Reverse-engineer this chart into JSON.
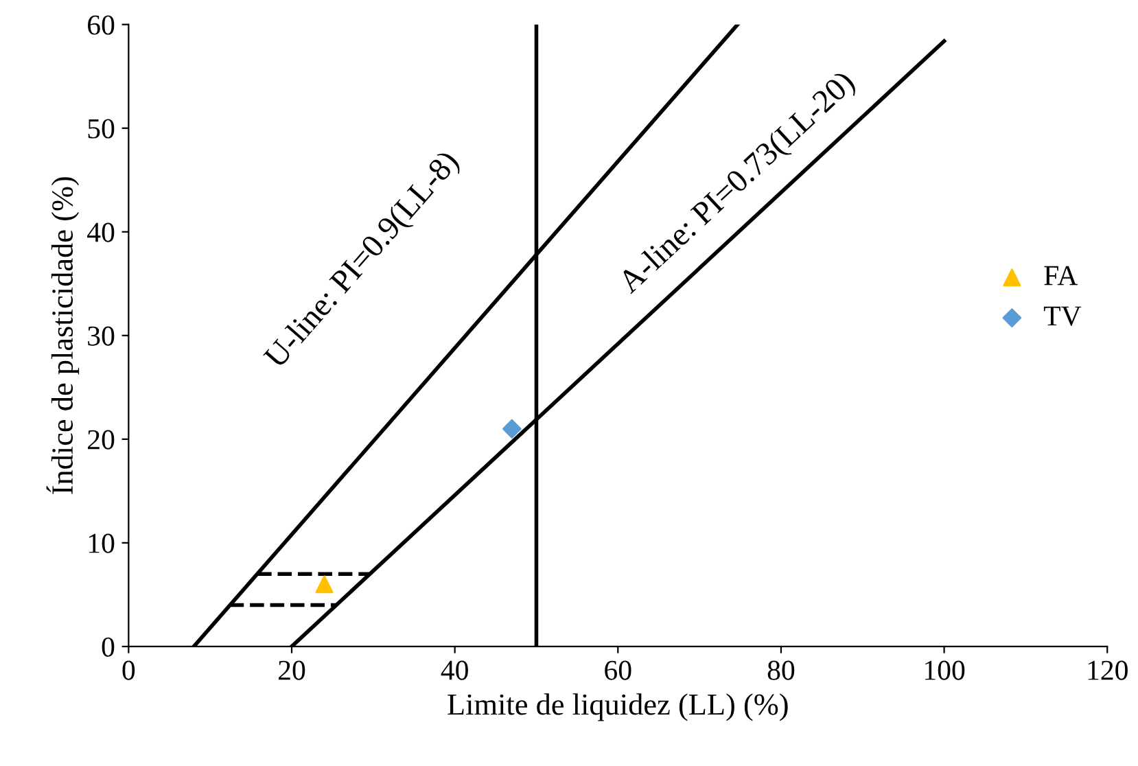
{
  "chart_data": {
    "type": "scatter",
    "xlabel": "Limite de liquidez (LL) (%)",
    "ylabel": "Índice de plasticidade (%)",
    "xlim": [
      0,
      120
    ],
    "ylim": [
      0,
      60
    ],
    "xticks": [
      0,
      20,
      40,
      60,
      80,
      100,
      120
    ],
    "yticks": [
      0,
      10,
      20,
      30,
      40,
      50,
      60
    ],
    "grid": false,
    "legend": "right",
    "series": [
      {
        "type": "line",
        "color": "#000000",
        "x": [
          8,
          74.67
        ],
        "values": [
          0,
          60
        ],
        "line_style": "solid"
      },
      {
        "type": "line",
        "color": "#000000",
        "x": [
          20,
          100
        ],
        "values": [
          0,
          58.4
        ],
        "line_style": "solid"
      },
      {
        "type": "line",
        "color": "#000000",
        "x": [
          50,
          50
        ],
        "values": [
          0,
          60
        ],
        "line_style": "solid"
      },
      {
        "type": "line",
        "color": "#000000",
        "x": [
          15.8,
          29.6
        ],
        "values": [
          7,
          7
        ],
        "line_style": "dashed"
      },
      {
        "type": "line",
        "color": "#000000",
        "x": [
          12.4,
          25.5
        ],
        "values": [
          4,
          4
        ],
        "line_style": "dashed"
      },
      {
        "name": "FA",
        "color": "#ffc000",
        "x": [
          24
        ],
        "values": [
          6
        ],
        "marker": "triangle"
      },
      {
        "name": "TV",
        "color": "#5b9bd5",
        "x": [
          47
        ],
        "values": [
          21
        ],
        "marker": "diamond"
      }
    ],
    "annotations": [
      "U-line: PI=0.9(LL-8)",
      "A-line: PI=0.73(LL-20)"
    ]
  }
}
